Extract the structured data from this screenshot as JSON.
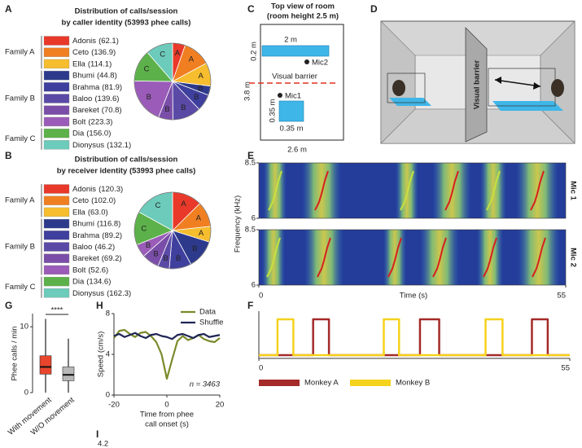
{
  "panel_labels": [
    "A",
    "B",
    "C",
    "D",
    "E",
    "F",
    "G",
    "H",
    "I"
  ],
  "room": {
    "title": "Top view of room",
    "subtitle": "(room height 2.5 m)",
    "top_width": "2 m",
    "top_depth": "0.2 m",
    "mic2": "Mic2",
    "length": "3.8 m",
    "barrier": "Visual barrier",
    "mic1": "Mic1",
    "square_height": "0.35 m",
    "square_width": "0.35 m",
    "width": "2.6 m"
  },
  "illustration": {
    "barrier": "Visual barrier"
  },
  "panel_i": {
    "tick": "4.2"
  },
  "chart_data": [
    {
      "type": "pie",
      "title": [
        "Distribution of calls/session",
        "by caller identity (53993 phee calls)"
      ],
      "categories": [
        "Adonis",
        "Ceto",
        "Ella",
        "Bhumi",
        "Brahma",
        "Baloo",
        "Bareket",
        "Bolt",
        "Dia",
        "Dionysus"
      ],
      "values": [
        62.1,
        136.9,
        114.1,
        44.8,
        81.9,
        139.6,
        70.8,
        223.3,
        156.0,
        132.1
      ],
      "value_labels": [
        "(62.1)",
        "(136.9)",
        "(114.1)",
        "(44.8)",
        "(81.9)",
        "(139.6)",
        "(70.8)",
        "(223.3)",
        "(156.0)",
        "(132.1)"
      ],
      "slice_labels": [
        "A",
        "A",
        "A",
        "B",
        "B",
        "B",
        "B",
        "B",
        "C",
        "C"
      ],
      "groups": [
        "Family A",
        "Family B",
        "Family C"
      ],
      "colors": [
        "#e8392a",
        "#f07f22",
        "#f6bd2e",
        "#2d3a8c",
        "#3f3f9e",
        "#5a4aa6",
        "#7a4ea8",
        "#9a5cb8",
        "#5db14a",
        "#6ccbbb"
      ]
    },
    {
      "type": "pie",
      "title": [
        "Distribution of calls/session",
        "by receiver identity (53993 phee calls)"
      ],
      "categories": [
        "Adonis",
        "Ceto",
        "Ella",
        "Bhumi",
        "Brahma",
        "Baloo",
        "Bareket",
        "Bolt",
        "Dia",
        "Dionysus"
      ],
      "values": [
        120.3,
        102.0,
        63.0,
        116.8,
        89.2,
        46.2,
        69.2,
        52.6,
        134.6,
        162.3
      ],
      "value_labels": [
        "(120.3)",
        "(102.0)",
        "(63.0)",
        "(116.8)",
        "(89.2)",
        "(46.2)",
        "(69.2)",
        "(52.6)",
        "(134.6)",
        "(162.3)"
      ],
      "slice_labels": [
        "A",
        "A",
        "A",
        "B",
        "B",
        "B",
        "B",
        "B",
        "C",
        "C"
      ],
      "groups": [
        "Family A",
        "Family B",
        "Family C"
      ],
      "colors": [
        "#e8392a",
        "#f07f22",
        "#f6bd2e",
        "#2d3a8c",
        "#3f3f9e",
        "#5a4aa6",
        "#7a4ea8",
        "#9a5cb8",
        "#5db14a",
        "#6ccbbb"
      ]
    },
    {
      "type": "spectrogram",
      "ylabel": "Frequency (kHz)",
      "xlabel": "Time (s)",
      "panels": [
        "Mic 1",
        "Mic 2"
      ],
      "ylim": [
        6,
        8.5
      ],
      "yticks": [
        6,
        8.5
      ],
      "xlim": [
        0,
        55
      ],
      "xticks": [
        0,
        55
      ]
    },
    {
      "type": "line",
      "x": [
        0,
        3.3,
        3.3,
        6.1,
        6.1,
        9.6,
        9.6,
        12.4,
        12.4,
        22.1,
        22.1,
        24.8,
        24.8,
        28.5,
        28.5,
        31.9,
        31.9,
        40.1,
        40.1,
        43.1,
        43.1,
        48.3,
        48.3,
        51.1,
        51.1,
        55
      ],
      "series": [
        {
          "name": "Monkey A",
          "color": "#a52a2a",
          "values": [
            0,
            0,
            0,
            0,
            0,
            0,
            1,
            1,
            0,
            0,
            0,
            0,
            0,
            0,
            1,
            1,
            0,
            0,
            0,
            0,
            0,
            0,
            1,
            1,
            0,
            0
          ]
        },
        {
          "name": "Monkey B",
          "color": "#f5d21c",
          "values": [
            0,
            0,
            1,
            1,
            0,
            0,
            0,
            0,
            0,
            0,
            1,
            1,
            0,
            0,
            0,
            0,
            0,
            0,
            1,
            1,
            0,
            0,
            0,
            0,
            0,
            0
          ]
        }
      ],
      "xlim": [
        0,
        55
      ],
      "xticks": [
        0,
        55
      ],
      "ylim": [
        0,
        1
      ]
    },
    {
      "type": "box",
      "ylabel": "Phee calls / min",
      "categories": [
        "With movement",
        "W/O movement"
      ],
      "boxes": [
        {
          "min": 0,
          "q1": 2.8,
          "median": 3.9,
          "q3": 5.6,
          "max": 11.2
        },
        {
          "min": 0,
          "q1": 1.8,
          "median": 2.7,
          "q3": 3.9,
          "max": 8.2
        }
      ],
      "colors": [
        "#e8452c",
        "#b8b8b8"
      ],
      "significance": "****",
      "ylim": [
        0,
        12
      ],
      "yticks": [
        0,
        10
      ]
    },
    {
      "type": "line",
      "ylabel": "Speed (cm/s)",
      "xlabel": [
        "Time from phee",
        "call onset (s)"
      ],
      "annotation": "n = 3463",
      "x": [
        -20,
        -18,
        -16,
        -14,
        -12,
        -10,
        -8,
        -6,
        -4,
        -2,
        0,
        2,
        4,
        6,
        8,
        10,
        12,
        14,
        16,
        18,
        20
      ],
      "series": [
        {
          "name": "Data",
          "color": "#7a8a2a",
          "values": [
            5.6,
            6.3,
            6.4,
            6.0,
            5.7,
            6.1,
            6.2,
            5.8,
            5.2,
            4.0,
            1.6,
            3.5,
            5.3,
            5.8,
            5.4,
            5.6,
            5.9,
            5.5,
            5.3,
            5.2,
            5.6
          ]
        },
        {
          "name": "Shuffle",
          "color": "#1f2555",
          "values": [
            5.8,
            6.0,
            5.7,
            5.9,
            6.1,
            5.8,
            5.6,
            5.9,
            6.0,
            5.8,
            5.7,
            5.5,
            5.9,
            6.0,
            5.8,
            5.6,
            5.9,
            6.0,
            5.7,
            5.8,
            5.9
          ]
        }
      ],
      "xlim": [
        -20,
        20
      ],
      "xticks": [
        -20,
        0,
        20
      ],
      "ylim": [
        0,
        8
      ],
      "yticks": [
        0,
        4,
        8
      ]
    }
  ]
}
